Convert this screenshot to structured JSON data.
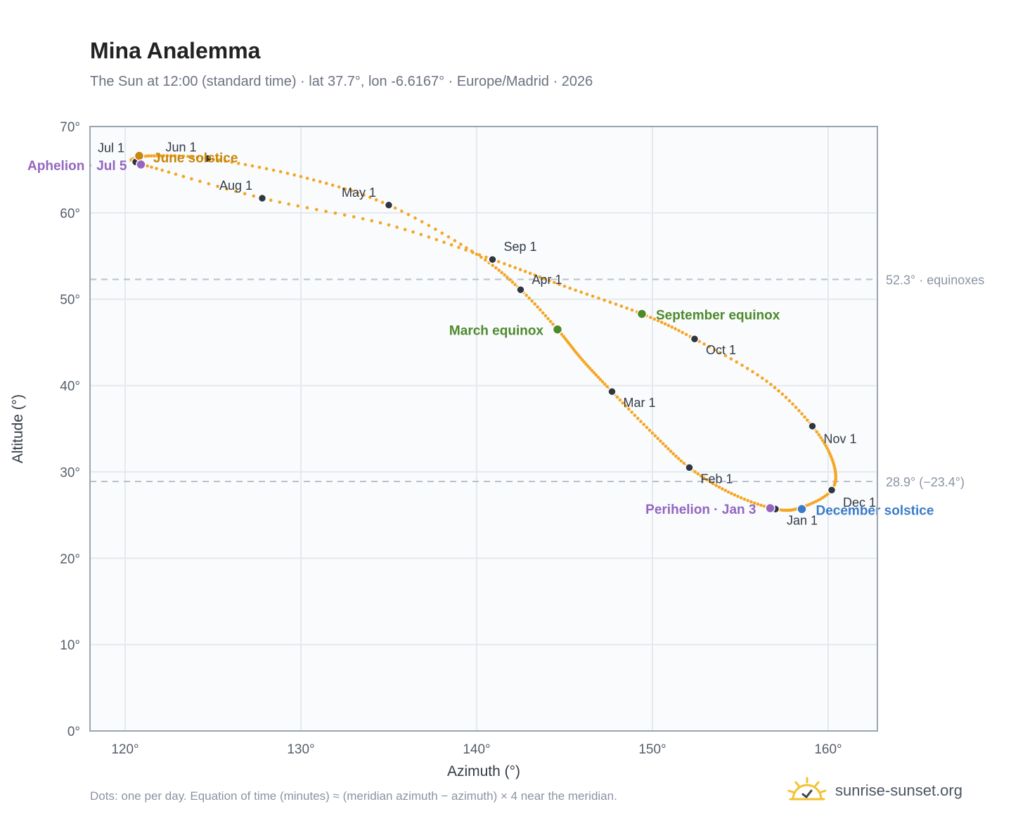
{
  "page": {
    "title": "Mina Analemma",
    "subtitle": "The Sun at 12:00 (standard time) · lat 37.7°, lon -6.6167° · Europe/Madrid · 2026",
    "footnote": "Dots: one per day. Equation of time (minutes) ≈ (meridian azimuth − azimuth) × 4 near the meridian.",
    "brand": "sunrise-sunset.org"
  },
  "colors": {
    "curve": "#f5a623",
    "month_dot": "#2f3640",
    "equinox": "#4e8a2b",
    "solstice_june": "#c8860a",
    "solstice_december": "#3a7bc8",
    "apsis": "#9466c0",
    "reference_line": "#b8c2cc",
    "plot_background": "#f9fbfd",
    "grid": "#e5e9ee",
    "axis_frame": "#9aa5b1"
  },
  "chart_data": {
    "type": "scatter",
    "xlabel": "Azimuth (°)",
    "ylabel": "Altitude (°)",
    "xlim": [
      118,
      162.8
    ],
    "ylim": [
      0,
      70
    ],
    "x_ticks": [
      "120°",
      "130°",
      "140°",
      "150°",
      "160°"
    ],
    "x_tick_values": [
      120,
      130,
      140,
      150,
      160
    ],
    "y_ticks": [
      "0°",
      "10°",
      "20°",
      "30°",
      "40°",
      "50°",
      "60°",
      "70°"
    ],
    "y_tick_values": [
      0,
      10,
      20,
      30,
      40,
      50,
      60,
      70
    ],
    "grid": true,
    "reference_lines": [
      {
        "y": 52.3,
        "label": "52.3° · equinoxes"
      },
      {
        "y": 28.9,
        "label": "28.9° (−23.4°)"
      }
    ],
    "monthly_points": [
      {
        "label": "Jan 1",
        "az": 157.0,
        "alt": 25.7
      },
      {
        "label": "Feb 1",
        "az": 152.1,
        "alt": 30.5
      },
      {
        "label": "Mar 1",
        "az": 147.7,
        "alt": 39.3
      },
      {
        "label": "Apr 1",
        "az": 142.5,
        "alt": 51.1
      },
      {
        "label": "May 1",
        "az": 135.0,
        "alt": 60.9
      },
      {
        "label": "Jun 1",
        "az": 124.7,
        "alt": 66.3
      },
      {
        "label": "Jul 1",
        "az": 120.6,
        "alt": 65.9
      },
      {
        "label": "Aug 1",
        "az": 127.8,
        "alt": 61.7
      },
      {
        "label": "Sep 1",
        "az": 140.9,
        "alt": 54.6
      },
      {
        "label": "Oct 1",
        "az": 152.4,
        "alt": 45.4
      },
      {
        "label": "Nov 1",
        "az": 159.1,
        "alt": 35.3
      },
      {
        "label": "Dec 1",
        "az": 160.2,
        "alt": 27.9
      }
    ],
    "events": [
      {
        "label": "March equinox",
        "az": 144.6,
        "alt": 46.5,
        "kind": "equinox"
      },
      {
        "label": "September equinox",
        "az": 149.4,
        "alt": 48.3,
        "kind": "equinox"
      },
      {
        "label": "June solstice",
        "az": 120.8,
        "alt": 66.6,
        "kind": "solstice_june"
      },
      {
        "label": "December solstice",
        "az": 158.5,
        "alt": 25.7,
        "kind": "solstice_december"
      },
      {
        "label": "Aphelion · Jul 5",
        "az": 120.9,
        "alt": 65.6,
        "kind": "apsis"
      },
      {
        "label": "Perihelion · Jan 3",
        "az": 156.7,
        "alt": 25.8,
        "kind": "apsis"
      }
    ],
    "curve_anchor_points": [
      [
        157.0,
        25.7
      ],
      [
        154.5,
        27.5
      ],
      [
        152.1,
        30.5
      ],
      [
        150.0,
        34.5
      ],
      [
        147.7,
        39.3
      ],
      [
        146.0,
        43.0
      ],
      [
        144.6,
        46.5
      ],
      [
        142.5,
        51.1
      ],
      [
        140.0,
        55.2
      ],
      [
        135.0,
        60.9
      ],
      [
        130.0,
        64.2
      ],
      [
        124.7,
        66.3
      ],
      [
        121.5,
        66.6
      ],
      [
        120.4,
        66.2
      ],
      [
        120.6,
        65.9
      ],
      [
        121.5,
        65.3
      ],
      [
        127.8,
        61.7
      ],
      [
        135.0,
        58.6
      ],
      [
        140.9,
        54.6
      ],
      [
        145.0,
        51.5
      ],
      [
        149.4,
        48.3
      ],
      [
        152.4,
        45.4
      ],
      [
        156.5,
        40.5
      ],
      [
        159.1,
        35.3
      ],
      [
        160.3,
        31.0
      ],
      [
        160.2,
        27.9
      ],
      [
        158.5,
        25.9
      ],
      [
        157.0,
        25.7
      ]
    ]
  }
}
